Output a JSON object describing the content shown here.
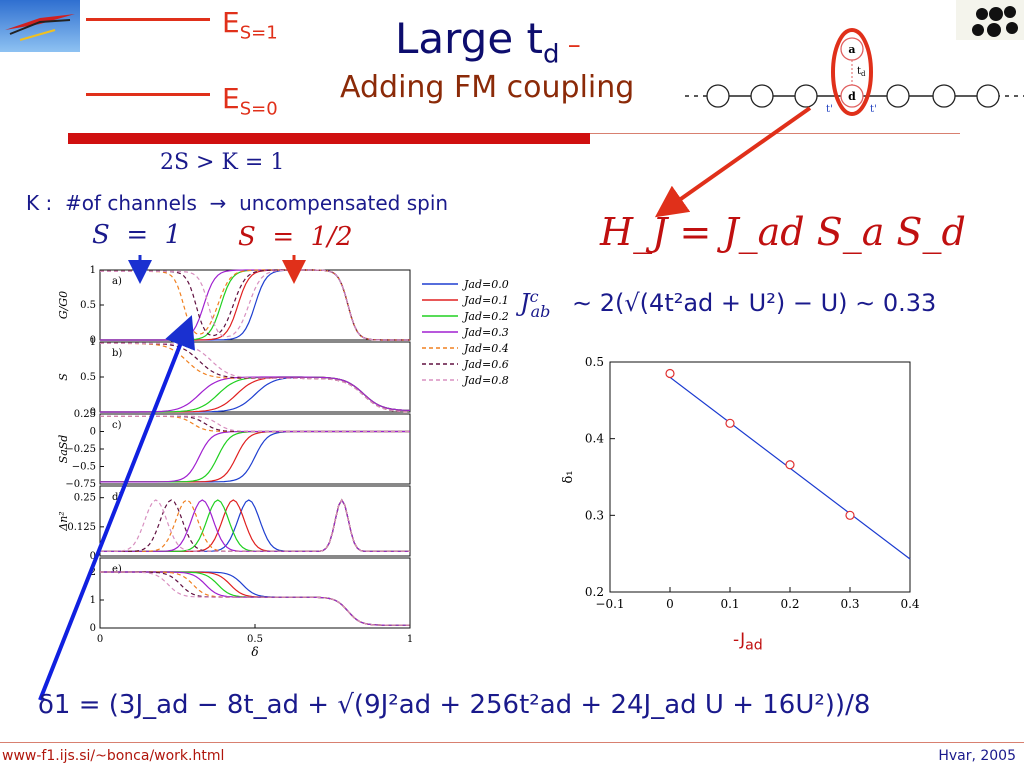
{
  "slide": {
    "title_main": "Large t",
    "title_sub": "d",
    "title_dash": " –",
    "subtitle": "Adding FM coupling",
    "energy_top": "E",
    "energy_top_sub": "S=1",
    "energy_bottom": "E",
    "energy_bottom_sub": "S=0",
    "condition_line": "2S > K  =  1",
    "k_label": "K :",
    "k_text": "#of channels",
    "k_arrow": "→",
    "k_result": "uncompensated spin",
    "s1": "S  =  1",
    "s2": "S  =  1/2",
    "hamiltonian": "H_J  =  J_ad S_a S_d",
    "jab": "J",
    "jab_sup": "c",
    "jab_sub": "ab",
    "jab_rhs": "∼  2(√(4t²ad + U²) − U) ∼ 0.33",
    "delta_formula": "δ1  =  (3J_ad − 8t_ad + √(9J²ad + 256t²ad + 24J_ad U + 16U²))/8",
    "footer_left": "www-f1.ijs.si/~bonca/work.html",
    "footer_right": "Hvar, 2005",
    "jad_axis_label": "-J",
    "jad_axis_sub": "ad"
  },
  "diagram": {
    "node_a": "a",
    "node_d": "d",
    "bond_label": "t",
    "bond_label_sub": "d",
    "hop_left": "t'",
    "hop_right": "t'"
  },
  "colors": {
    "accent_red": "#e0301a",
    "title_blue": "#0d0d6e",
    "bar_red": "#d01010",
    "line_blue": "#1a3ad0"
  },
  "chart_data": [
    {
      "type": "line",
      "panels": [
        {
          "tag": "a)",
          "ylabel": "G/G0",
          "yticks": [
            "0",
            "0.5",
            "1"
          ]
        },
        {
          "tag": "b)",
          "ylabel": "S",
          "yticks": [
            "0",
            "0.5",
            "1"
          ]
        },
        {
          "tag": "c)",
          "ylabel": "SaSd",
          "yticks": [
            "−0.75",
            "−0.5",
            "−0.25",
            "0",
            "0.25"
          ]
        },
        {
          "tag": "d)",
          "ylabel": "Δn²",
          "yticks": [
            "0",
            "0.125",
            "0.25"
          ]
        },
        {
          "tag": "e)",
          "ylabel": "",
          "yticks": [
            "0",
            "1",
            "2"
          ]
        }
      ],
      "xlabel": "δ",
      "xticks": [
        "0",
        "0.5",
        "1"
      ],
      "legend": [
        {
          "label": "Jad=0.0",
          "color": "#1f3fd0",
          "dash": false
        },
        {
          "label": "Jad=0.1",
          "color": "#e02020",
          "dash": false
        },
        {
          "label": "Jad=0.2",
          "color": "#20d020",
          "dash": false
        },
        {
          "label": "Jad=0.3",
          "color": "#a020d0",
          "dash": false
        },
        {
          "label": "Jad=0.4",
          "color": "#f08020",
          "dash": true
        },
        {
          "label": "Jad=0.6",
          "color": "#601040",
          "dash": true
        },
        {
          "label": "Jad=0.8",
          "color": "#d890c0",
          "dash": true
        }
      ]
    },
    {
      "type": "scatter",
      "xlabel": "-Jad",
      "ylabel": "δ1",
      "xlim": [
        -0.1,
        0.4
      ],
      "ylim": [
        0.2,
        0.5
      ],
      "xticks": [
        "−0.1",
        "0",
        "0.1",
        "0.2",
        "0.3",
        "0.4"
      ],
      "yticks": [
        "0.2",
        "0.3",
        "0.4",
        "0.5"
      ],
      "points": [
        {
          "x": 0.0,
          "y": 0.485
        },
        {
          "x": 0.1,
          "y": 0.42
        },
        {
          "x": 0.2,
          "y": 0.366
        },
        {
          "x": 0.3,
          "y": 0.3
        }
      ],
      "fit_line": [
        {
          "x": 0.0,
          "y": 0.48
        },
        {
          "x": 0.4,
          "y": 0.243
        }
      ]
    }
  ]
}
